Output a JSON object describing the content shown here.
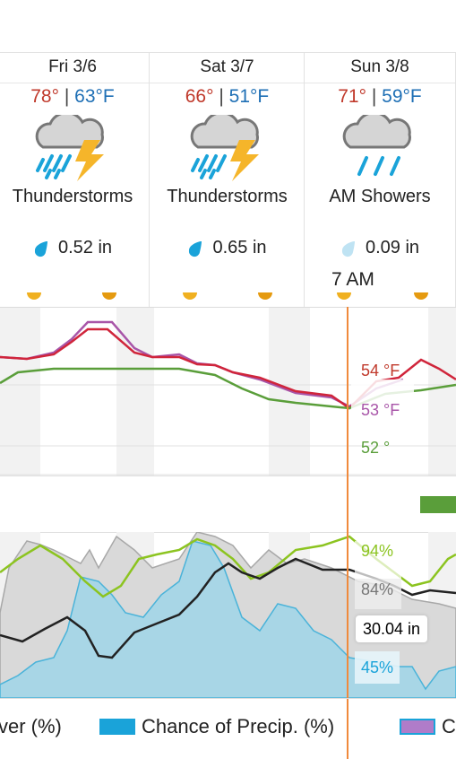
{
  "days": [
    {
      "name": "Fri 3/6",
      "high": "78°",
      "sep": "|",
      "low": "63°F",
      "condition": "Thunderstorms",
      "precip": "0.52 in",
      "icon": "thunderstorm-icon"
    },
    {
      "name": "Sat 3/7",
      "high": "66°",
      "sep": "|",
      "low": "51°F",
      "condition": "Thunderstorms",
      "precip": "0.65 in",
      "icon": "thunderstorm-icon"
    },
    {
      "name": "Sun 3/8",
      "high": "71°",
      "sep": "|",
      "low": "59°F",
      "condition": "AM Showers",
      "precip": "0.09 in",
      "icon": "rain-showers-icon"
    }
  ],
  "hover": {
    "time": "7 AM",
    "temp": "54 °F",
    "feels": "53 °F",
    "dew": "52 °",
    "humidity": "94%",
    "cloud": "84%",
    "pressure": "30.04 in",
    "chance": "45%"
  },
  "legend": [
    {
      "label": "ver (%)"
    },
    {
      "label": "Chance of Precip. (%)",
      "color": "#1aa3d9"
    },
    {
      "label": "C",
      "color": "#b07cc9"
    }
  ],
  "colors": {
    "temp": "#d0253b",
    "feels": "#a855a8",
    "dew": "#5a9e3a",
    "humidity": "#8cc420",
    "precip": "#1aa3d9",
    "cursor": "#f08a3c",
    "pressure": "#222222"
  }
}
